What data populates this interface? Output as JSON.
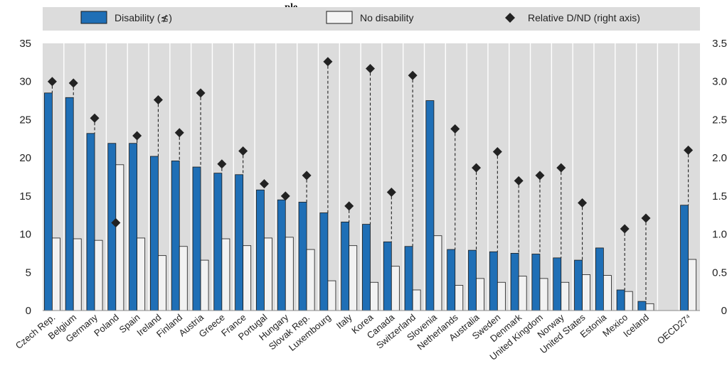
{
  "chart_data": {
    "type": "bar",
    "title": "...ple ... ... ... ... ... ... ... ...",
    "legend": {
      "placement": "top",
      "entries": [
        {
          "label": "Disability (≴)",
          "color": "#1f6fb6",
          "marker": "bar"
        },
        {
          "label": "No disability",
          "color": "#f2f2f2",
          "marker": "bar"
        },
        {
          "label": "Relative D/ND (right axis)",
          "color": "#222222",
          "marker": "diamond"
        }
      ]
    },
    "categories": [
      "Czech Rep.",
      "Belgium",
      "Germany",
      "Poland",
      "Spain",
      "Ireland",
      "Finland",
      "Austria",
      "Greece",
      "France",
      "Portugal",
      "Hungary",
      "Slovak Rep.",
      "Luxembourg",
      "Italy",
      "Korea",
      "Canada",
      "Switzerland",
      "Slovenia",
      "Netherlands",
      "Australia",
      "Sweden",
      "Denmark",
      "United Kingdom",
      "Norway",
      "United States",
      "Estonia",
      "Mexico",
      "Iceland",
      "",
      "OECD27⁴"
    ],
    "series": [
      {
        "name": "Disability (≴)",
        "axis": "left",
        "color": "#1f6fb6",
        "values": [
          28.5,
          27.9,
          23.2,
          21.9,
          21.9,
          20.2,
          19.6,
          18.8,
          18.0,
          17.8,
          15.8,
          14.5,
          14.2,
          12.8,
          11.6,
          11.3,
          9.0,
          8.4,
          27.5,
          8.0,
          7.9,
          7.7,
          7.5,
          7.4,
          6.9,
          6.6,
          8.2,
          2.7,
          1.2,
          null,
          13.8
        ]
      },
      {
        "name": "No disability",
        "axis": "left",
        "color": "#f2f2f2",
        "values": [
          9.5,
          9.4,
          9.2,
          19.1,
          9.5,
          7.2,
          8.4,
          6.6,
          9.4,
          8.5,
          9.5,
          9.6,
          8.0,
          3.9,
          8.5,
          3.7,
          5.8,
          2.7,
          9.8,
          3.3,
          4.2,
          3.7,
          4.5,
          4.2,
          3.7,
          4.7,
          4.6,
          2.5,
          0.9,
          null,
          6.7
        ]
      },
      {
        "name": "Relative D/ND (right axis)",
        "axis": "right",
        "color": "#222222",
        "values": [
          3.0,
          2.98,
          2.52,
          1.15,
          2.29,
          2.76,
          2.33,
          2.85,
          1.92,
          2.09,
          1.66,
          1.5,
          1.77,
          3.26,
          1.37,
          3.17,
          1.55,
          3.08,
          null,
          2.38,
          1.87,
          2.08,
          1.7,
          1.77,
          1.87,
          1.41,
          null,
          1.07,
          1.21,
          null,
          2.1
        ]
      }
    ],
    "yleft": {
      "ylim": [
        0,
        35
      ],
      "ticks": [
        "0",
        "5",
        "10",
        "15",
        "20",
        "25",
        "30",
        "35"
      ]
    },
    "yright": {
      "ylim": [
        0,
        3.5
      ],
      "ticks": [
        "0",
        "0.5",
        "1.0",
        "1.5",
        "2.0",
        "2.5",
        "3.0",
        "3.5"
      ]
    },
    "grid": "vertical",
    "xlabel": "",
    "ylabel": ""
  }
}
